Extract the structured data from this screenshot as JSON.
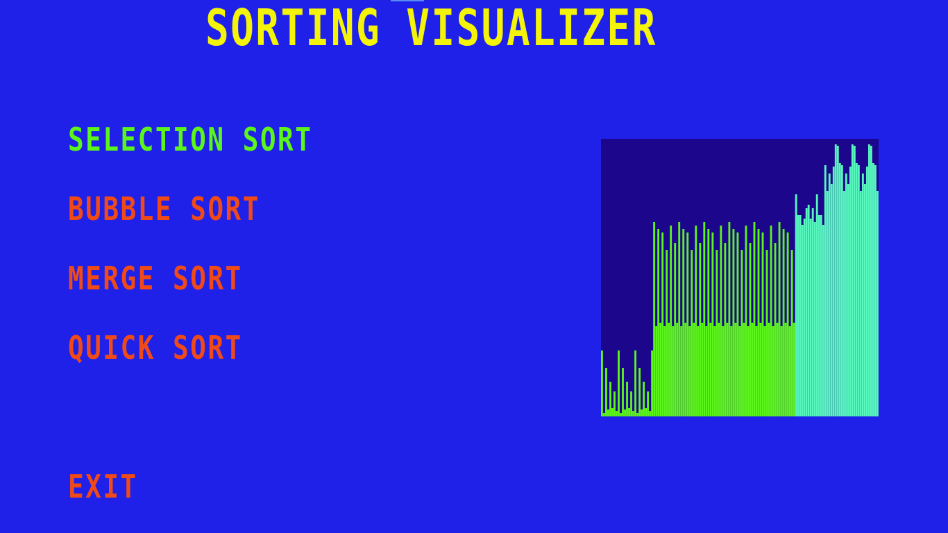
{
  "title": "SORTING VISUALIZER",
  "menu": {
    "items": [
      {
        "label": "SELECTION SORT",
        "selected": true
      },
      {
        "label": "BUBBLE SORT",
        "selected": false
      },
      {
        "label": "MERGE SORT",
        "selected": false
      },
      {
        "label": "QUICK SORT",
        "selected": false
      }
    ],
    "exit_label": "EXIT"
  },
  "colors": {
    "background": "#1f21e9",
    "title": "#f4f40a",
    "menu_selected": "#5cf51b",
    "menu_unselected": "#f04a18",
    "preview_background": "#1c068c",
    "bar_green": "#5cf51b",
    "bar_teal": "#57f7be"
  },
  "preview": {
    "bar_count": 133,
    "max_value": 400,
    "segments": [
      {
        "start": 0,
        "end": 25,
        "color": "bar_green",
        "tops": [
          95,
          82,
          70,
          60,
          50,
          42,
          36,
          30
        ],
        "bases": [
          20,
          10,
          28,
          5,
          15,
          8,
          32,
          12
        ]
      },
      {
        "start": 25,
        "end": 93,
        "color": "bar_green",
        "tops": [
          280,
          230,
          270,
          190,
          265,
          170,
          240,
          200,
          275,
          180,
          250,
          210
        ],
        "bases": [
          100,
          110,
          95,
          130,
          105,
          140,
          120,
          150,
          115,
          135,
          160,
          125
        ]
      },
      {
        "start": 93,
        "end": 107,
        "color": "bar_teal",
        "tops": [
          320,
          305,
          290,
          300,
          285
        ],
        "bases": [
          300,
          285,
          280,
          290,
          276
        ]
      },
      {
        "start": 107,
        "end": 133,
        "color": "bar_teal",
        "tops": [
          362,
          355,
          350,
          345,
          360,
          385,
          390,
          399
        ],
        "bases": [
          340,
          335,
          330,
          325,
          345,
          365,
          370,
          392
        ]
      }
    ]
  }
}
